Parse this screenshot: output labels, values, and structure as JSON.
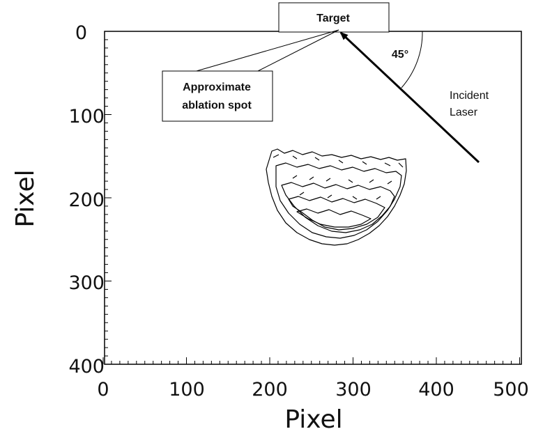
{
  "axes": {
    "xlabel": "Pixel",
    "ylabel": "Pixel",
    "xlim": [
      0,
      500
    ],
    "ylim": [
      0,
      400
    ],
    "y_inverted": true,
    "x_ticks": [
      "0",
      "100",
      "200",
      "300",
      "400",
      "500"
    ],
    "y_ticks": [
      "0",
      "100",
      "200",
      "300",
      "400"
    ]
  },
  "annotations": {
    "target": "Target",
    "ablation_line1": "Approximate",
    "ablation_line2": "ablation spot",
    "angle": "45°",
    "laser_line1": "Incident",
    "laser_line2": "Laser"
  },
  "colors": {
    "ink": "#000000",
    "background": "#ffffff"
  }
}
